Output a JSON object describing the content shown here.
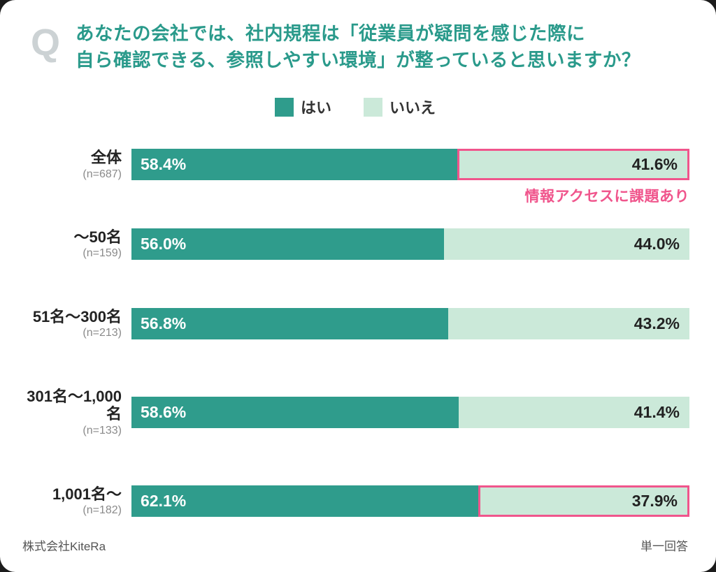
{
  "header": {
    "q": "Q",
    "title_line1": "あなたの会社では、社内規程は「従業員が疑問を感じた際に",
    "title_line2": "自ら確認できる、参照しやすい環境」が整っていると思いますか？"
  },
  "colors": {
    "yes": "#2f9c8c",
    "no": "#cbe9d9",
    "highlight_pink": "#f0558c",
    "title_teal": "#2a9a8b"
  },
  "legend": {
    "items": [
      {
        "label": "はい",
        "color": "#2f9c8c"
      },
      {
        "label": "いいえ",
        "color": "#cbe9d9"
      }
    ]
  },
  "chart_data": {
    "type": "bar",
    "orientation": "horizontal",
    "stacked": true,
    "xlim": [
      0,
      100
    ],
    "categories": [
      "全体",
      "～50名",
      "51名～300名",
      "301名～1,000名",
      "1,001名～"
    ],
    "sample_sizes": [
      "(n=687)",
      "(n=159)",
      "(n=213)",
      "(n=133)",
      "(n=182)"
    ],
    "series": [
      {
        "name": "はい",
        "color": "#2f9c8c",
        "values": [
          58.4,
          56.0,
          56.8,
          58.6,
          62.1
        ]
      },
      {
        "name": "いいえ",
        "color": "#cbe9d9",
        "values": [
          41.6,
          44.0,
          43.2,
          41.4,
          37.9
        ]
      }
    ],
    "highlighted_rows": [
      0,
      4
    ],
    "annotation": "情報アクセスに課題あり",
    "annotation_row": 0,
    "value_label_format": "percent_one_decimal"
  },
  "footer": {
    "left": "株式会社KiteRa",
    "right": "単一回答"
  }
}
